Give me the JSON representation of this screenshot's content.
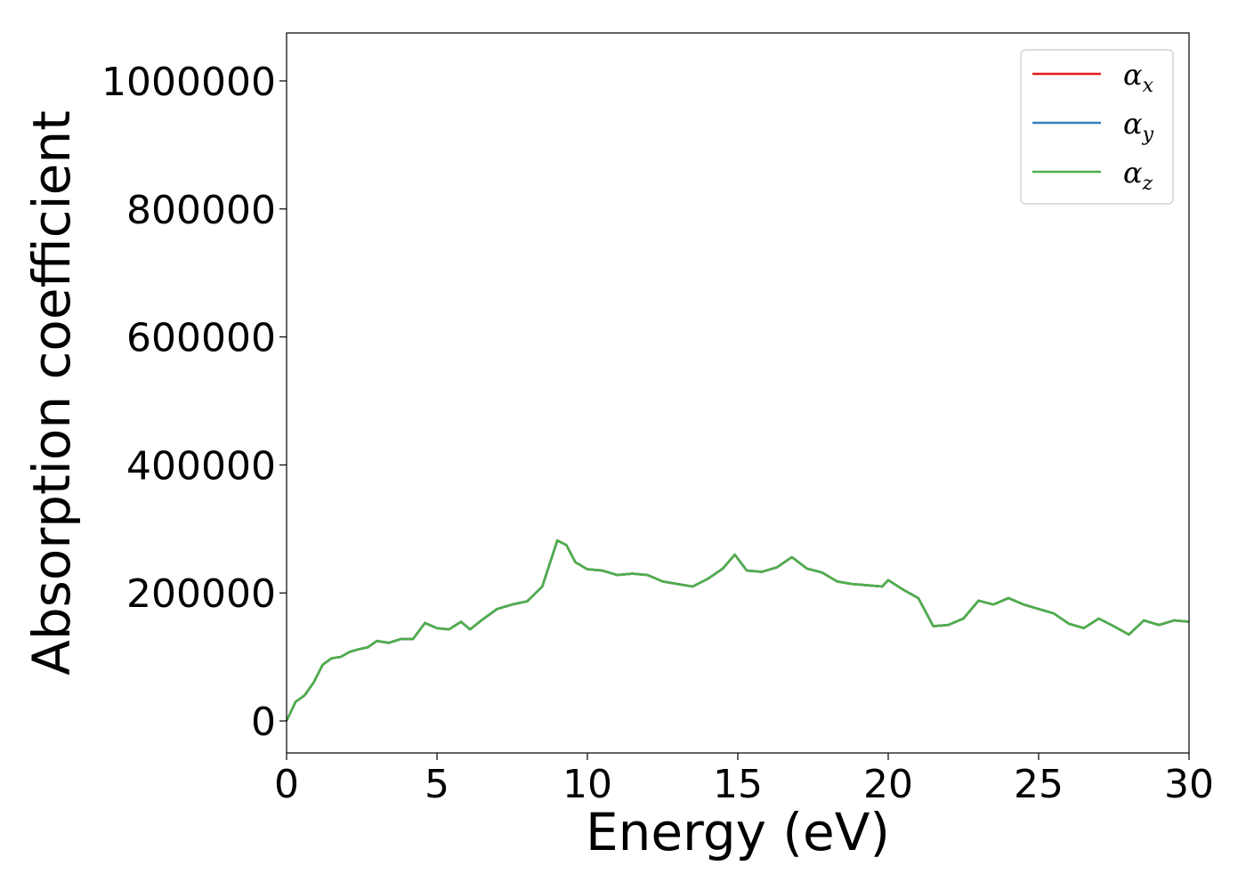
{
  "chart_data": {
    "type": "line",
    "xlabel": "Energy (eV)",
    "ylabel": "Absorption coefficient",
    "xlim": [
      0,
      30
    ],
    "ylim": [
      -50000,
      1075000
    ],
    "xticks": [
      0,
      5,
      10,
      15,
      20,
      25,
      30
    ],
    "xtick_labels": [
      "0",
      "5",
      "10",
      "15",
      "20",
      "25",
      "30"
    ],
    "yticks": [
      0,
      200000,
      400000,
      600000,
      800000,
      1000000
    ],
    "ytick_labels": [
      "0",
      "200000",
      "400000",
      "600000",
      "800000",
      "1000000"
    ],
    "grid": false,
    "legend_position": "top-right",
    "x": [
      0,
      0.3,
      0.6,
      0.9,
      1.2,
      1.5,
      1.8,
      2.1,
      2.4,
      2.7,
      3.0,
      3.4,
      3.8,
      4.2,
      4.6,
      5.0,
      5.4,
      5.8,
      6.1,
      6.5,
      7.0,
      7.5,
      8.0,
      8.5,
      9.0,
      9.3,
      9.6,
      10.0,
      10.5,
      11.0,
      11.5,
      12.0,
      12.5,
      13.0,
      13.5,
      14.0,
      14.5,
      14.9,
      15.3,
      15.8,
      16.3,
      16.8,
      17.3,
      17.8,
      18.3,
      18.8,
      19.3,
      19.8,
      20.0,
      20.5,
      21.0,
      21.5,
      22.0,
      22.5,
      23.0,
      23.5,
      24.0,
      24.5,
      25.0,
      25.5,
      26.0,
      26.5,
      27.0,
      27.5,
      28.0,
      28.5,
      29.0,
      29.5,
      30.0
    ],
    "series": [
      {
        "name": "αx",
        "color": "#e41a1c",
        "values": [
          0,
          30000,
          40000,
          60000,
          88000,
          98000,
          100000,
          108000,
          112000,
          115000,
          125000,
          122000,
          128000,
          128000,
          153000,
          145000,
          143000,
          155000,
          143000,
          158000,
          175000,
          182000,
          187000,
          210000,
          282000,
          275000,
          248000,
          237000,
          235000,
          228000,
          230000,
          228000,
          218000,
          214000,
          210000,
          222000,
          238000,
          260000,
          235000,
          233000,
          240000,
          256000,
          238000,
          232000,
          218000,
          214000,
          212000,
          210000,
          220000,
          205000,
          192000,
          148000,
          150000,
          160000,
          188000,
          182000,
          192000,
          182000,
          175000,
          168000,
          152000,
          145000,
          160000,
          148000,
          135000,
          157000,
          150000,
          157000,
          155000
        ]
      },
      {
        "name": "αy",
        "color": "#377eb8",
        "values": [
          0,
          30000,
          40000,
          60000,
          88000,
          98000,
          100000,
          108000,
          112000,
          115000,
          125000,
          122000,
          128000,
          128000,
          153000,
          145000,
          143000,
          155000,
          143000,
          158000,
          175000,
          182000,
          187000,
          210000,
          282000,
          275000,
          248000,
          237000,
          235000,
          228000,
          230000,
          228000,
          218000,
          214000,
          210000,
          222000,
          238000,
          260000,
          235000,
          233000,
          240000,
          256000,
          238000,
          232000,
          218000,
          214000,
          212000,
          210000,
          220000,
          205000,
          192000,
          148000,
          150000,
          160000,
          188000,
          182000,
          192000,
          182000,
          175000,
          168000,
          152000,
          145000,
          160000,
          148000,
          135000,
          157000,
          150000,
          157000,
          155000
        ]
      },
      {
        "name": "αz",
        "color": "#4daf4a",
        "values": [
          0,
          30000,
          40000,
          60000,
          88000,
          98000,
          100000,
          108000,
          112000,
          115000,
          125000,
          122000,
          128000,
          128000,
          153000,
          145000,
          143000,
          155000,
          143000,
          158000,
          175000,
          182000,
          187000,
          210000,
          282000,
          275000,
          248000,
          237000,
          235000,
          228000,
          230000,
          228000,
          218000,
          214000,
          210000,
          222000,
          238000,
          260000,
          235000,
          233000,
          240000,
          256000,
          238000,
          232000,
          218000,
          214000,
          212000,
          210000,
          220000,
          205000,
          192000,
          148000,
          150000,
          160000,
          188000,
          182000,
          192000,
          182000,
          175000,
          168000,
          152000,
          145000,
          160000,
          148000,
          135000,
          157000,
          150000,
          157000,
          155000
        ]
      }
    ],
    "legend": [
      {
        "base": "α",
        "sub": "x"
      },
      {
        "base": "α",
        "sub": "y"
      },
      {
        "base": "α",
        "sub": "z"
      }
    ]
  }
}
